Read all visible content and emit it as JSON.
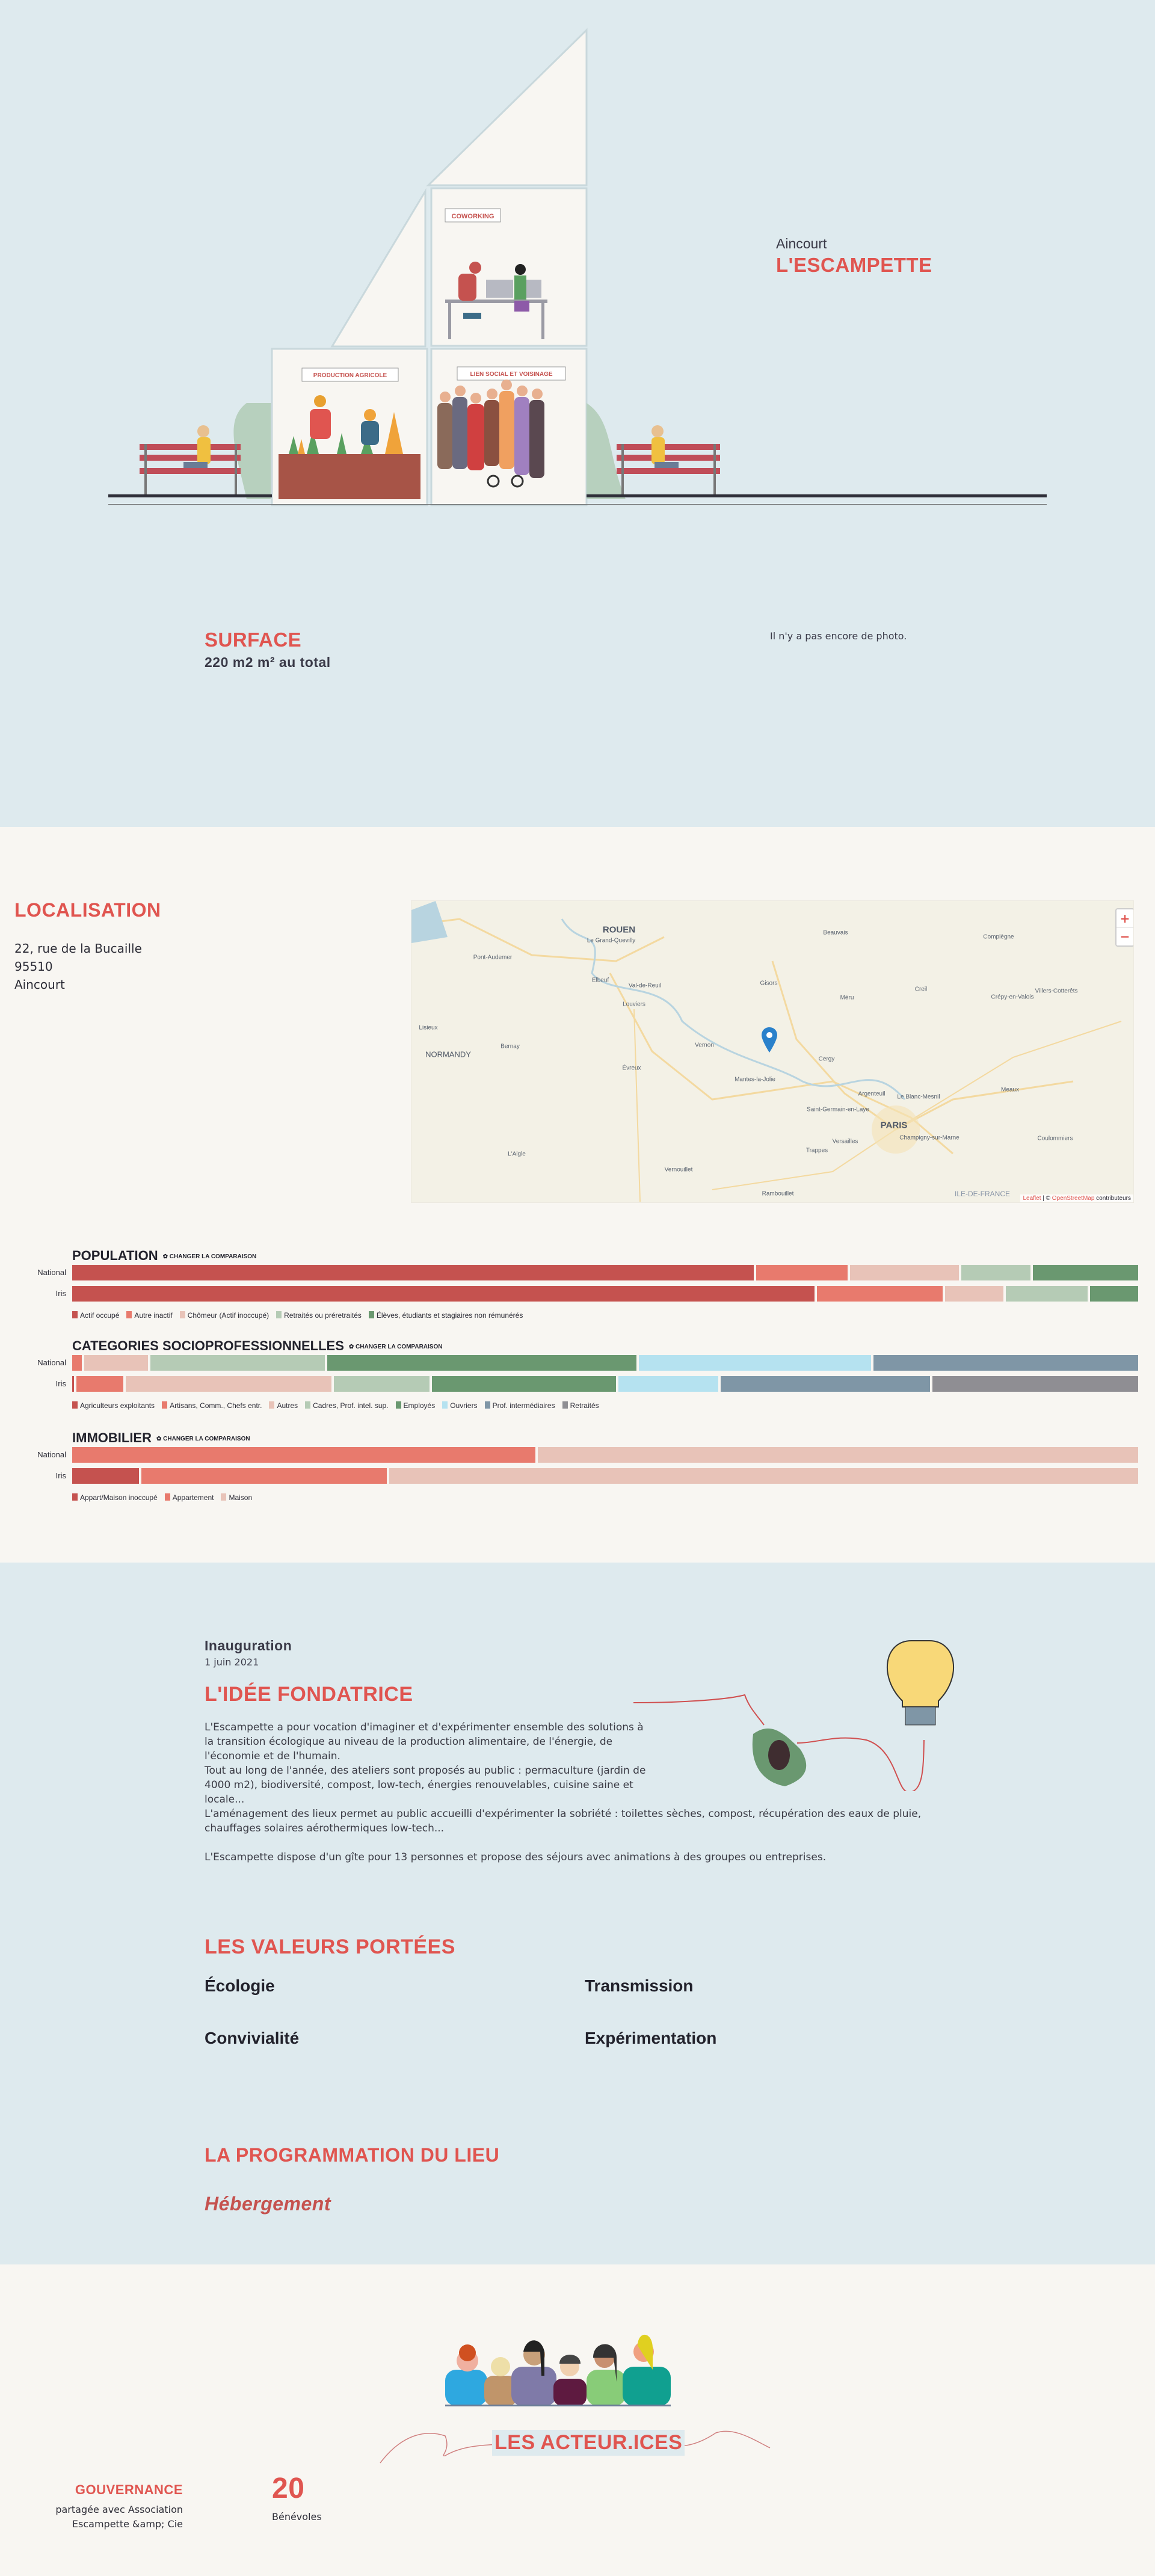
{
  "hero": {
    "city": "Aincourt",
    "title": "L'ESCAMPETTE",
    "signs": {
      "coworking": "COWORKING",
      "production": "PRODUCTION AGRICOLE",
      "lien": "LIEN SOCIAL ET VOISINAGE"
    },
    "surface_label": "SURFACE",
    "surface_value": "220 m2 m² au total",
    "no_photo": "Il n'y a pas encore de photo."
  },
  "localisation": {
    "title": "LOCALISATION",
    "address": [
      "22, rue de la Bucaille",
      "95510",
      "Aincourt"
    ],
    "map": {
      "labels": [
        "ROUEN",
        "Le Grand-Quevilly",
        "Pont-Audemer",
        "Elbeuf",
        "Val-de-Reuil",
        "Louviers",
        "Gisors",
        "Beauvais",
        "Compiègne",
        "Creil",
        "Méru",
        "Crépy-en-Valois",
        "Villers-Cotterêts",
        "Lisieux",
        "Bernay",
        "NORMANDY",
        "Vernon",
        "Cergy",
        "Évreux",
        "Mantes-la-Jolie",
        "Argenteuil",
        "Le Blanc-Mesnil",
        "Meaux",
        "Saint-Germain-en-Laye",
        "PARIS",
        "Champigny-sur-Marne",
        "Versailles",
        "Trappes",
        "Coulommiers",
        "L'Aigle",
        "Vernouillet",
        "Rambouillet",
        "ILE-DE-FRANCE"
      ],
      "zoom_in": "+",
      "zoom_out": "−",
      "attribution_leaflet": "Leaflet",
      "attribution_sep": " | © ",
      "attribution_osm": "OpenStreetMap",
      "attribution_rest": " contributeurs"
    }
  },
  "chart_data": [
    {
      "type": "bar",
      "title": "POPULATION",
      "change_label": "✿ CHANGER LA COMPARAISON",
      "categories": [
        "National",
        "Iris"
      ],
      "series": [
        {
          "name": "Actif occupé",
          "color": "#c5524f",
          "values": [
            64.0,
            69.7
          ]
        },
        {
          "name": "Autre inactif",
          "color": "#e87a6d",
          "values": [
            8.8,
            12.0
          ]
        },
        {
          "name": "Chômeur (Actif inoccupé)",
          "color": "#e8c3b8",
          "values": [
            10.4,
            5.7
          ]
        },
        {
          "name": "Retraités ou préretraités",
          "color": "#b5cbb5",
          "values": [
            6.7,
            7.9
          ]
        },
        {
          "name": "Élèves, étudiants et stagiaires non rémunérés",
          "color": "#6a9870",
          "values": [
            10.1,
            4.7
          ]
        }
      ]
    },
    {
      "type": "bar",
      "title": "CATEGORIES SOCIOPROFESSIONNELLES",
      "change_label": "✿ CHANGER LA COMPARAISON",
      "categories": [
        "National",
        "Iris"
      ],
      "series": [
        {
          "name": "Agriculteurs exploitants",
          "color": "#c5524f",
          "values": [
            0,
            0.4
          ]
        },
        {
          "name": "Artisans, Comm., Chefs entr.",
          "color": "#e87a6d",
          "values": [
            1.1,
            4.6
          ]
        },
        {
          "name": "Autres",
          "color": "#e8c3b8",
          "values": [
            6.2,
            19.5
          ]
        },
        {
          "name": "Cadres, Prof. intel. sup.",
          "color": "#b5cbb5",
          "values": [
            16.6,
            9.2
          ]
        },
        {
          "name": "Employés",
          "color": "#6a9870",
          "values": [
            29.2,
            17.4
          ]
        },
        {
          "name": "Ouvriers",
          "color": "#b5e2f0",
          "values": [
            22.0,
            9.6
          ]
        },
        {
          "name": "Prof. intermédiaires",
          "color": "#7f96a6",
          "values": [
            25.0,
            19.8
          ]
        },
        {
          "name": "Retraités",
          "color": "#8f8e93",
          "values": [
            0,
            19.5
          ]
        }
      ]
    },
    {
      "type": "bar",
      "title": "IMMOBILIER",
      "change_label": "✿ CHANGER LA COMPARAISON",
      "categories": [
        "National",
        "Iris"
      ],
      "series": [
        {
          "name": "Appart/Maison inoccupé",
          "color": "#c5524f",
          "values": [
            0,
            6.5
          ]
        },
        {
          "name": "Appartement",
          "color": "#e87a6d",
          "values": [
            43.6,
            23.2
          ]
        },
        {
          "name": "Maison",
          "color": "#e8c3b8",
          "values": [
            56.4,
            70.3
          ]
        }
      ]
    }
  ],
  "idea": {
    "inauguration_label": "Inauguration",
    "inauguration_date": "1 juin 2021",
    "title": "L'IDÉE FONDATRICE",
    "p1": "L'Escampette a pour vocation d'imaginer et d'expérimenter ensemble des solutions à la transition écologique au niveau de la production alimentaire, de l'énergie, de l'économie et de l'humain.",
    "p1b": "Tout au long de l'année, des ateliers sont proposés au public : permaculture (jardin de 4000 m2), biodiversité, compost, low-tech, énergies renouvelables, cuisine saine et locale...",
    "p2": "L'aménagement des lieux permet au public accueilli d'expérimenter la sobriété : toilettes sèches, compost, récupération des eaux de pluie, chauffages solaires aérothermiques low-tech...",
    "p3": "L'Escampette dispose d'un gîte pour 13 personnes et propose des séjours avec animations à des groupes ou entreprises.",
    "values_title": "LES VALEURS PORTÉES",
    "values": [
      "Écologie",
      "Transmission",
      "Convivialité",
      "Expérimentation"
    ],
    "programmation_title": "LA PROGRAMMATION DU LIEU",
    "programmation": [
      "Hébergement"
    ]
  },
  "actors": {
    "title": "LES ACTEUR.ICES",
    "gouvernance_label": "GOUVERNANCE",
    "gouvernance_text": "partagée avec Association Escampette &amp; Cie",
    "benevoles_count": "20",
    "benevoles_label": "Bénévoles"
  },
  "colors": {
    "accent": "#e05550",
    "hero_bg": "#deeaee",
    "page_bg": "#f8f6f2",
    "text": "#2e2e38"
  }
}
